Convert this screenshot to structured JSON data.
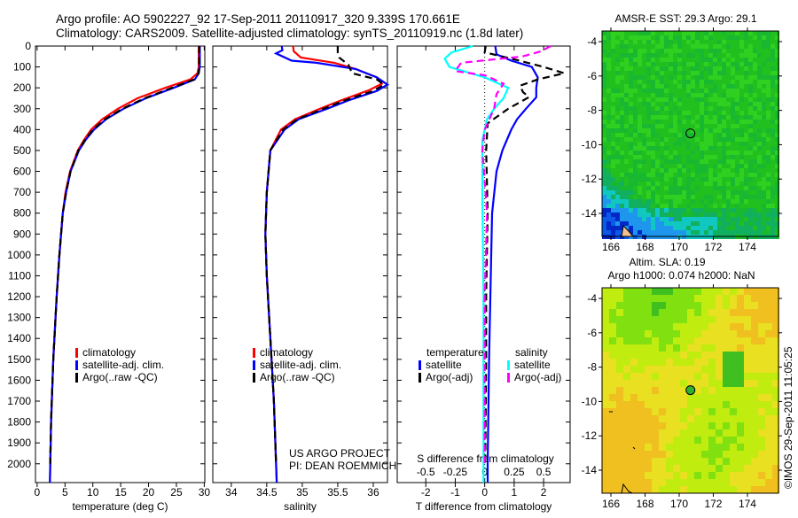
{
  "title_line1": "Argo profile: AO 5902227_92 17-Sep-2011 20110917_320 9.339S 170.661E",
  "title_line2": "Climatology: CARS2009. Satellite-adjusted climatology: synTS_20110919.nc (1.8d later)",
  "credit": "©IMOS 29-Sep-2011 11:05:25",
  "project_line1": "US ARGO PROJECT",
  "project_line2": "PI: DEAN ROEMMICH",
  "colors": {
    "climatology": "#ff0000",
    "satellite": "#0000ff",
    "argo": "#000000",
    "sal_satellite": "#00ffff",
    "sal_argo": "#ff00ff"
  },
  "chart_data": [
    {
      "type": "line",
      "xlabel": "temperature (deg C)",
      "ylabel": "",
      "xlim": [
        -0.3,
        30.1
      ],
      "ylim": [
        2090,
        0
      ],
      "xticks": [
        0,
        5,
        10,
        15,
        20,
        25,
        30
      ],
      "yticks": [
        0,
        100,
        200,
        300,
        400,
        500,
        600,
        700,
        800,
        900,
        1000,
        1100,
        1200,
        1300,
        1400,
        1500,
        1600,
        1700,
        1800,
        1900,
        2000
      ],
      "legend": [
        "climatology",
        "satellite-adj. clim.",
        "Argo(..raw -QC)"
      ],
      "series": [
        {
          "name": "climatology",
          "color": "#ff0000",
          "dash": false,
          "points": [
            [
              0,
              29
            ],
            [
              100,
              29
            ],
            [
              130,
              28.8
            ],
            [
              160,
              27.5
            ],
            [
              200,
              23
            ],
            [
              250,
              18
            ],
            [
              300,
              14.5
            ],
            [
              350,
              11.7
            ],
            [
              400,
              9.7
            ],
            [
              450,
              8.4
            ],
            [
              500,
              7.3
            ],
            [
              600,
              5.9
            ],
            [
              700,
              5.1
            ],
            [
              800,
              4.6
            ],
            [
              1000,
              4.0
            ],
            [
              1200,
              3.5
            ],
            [
              1500,
              2.9
            ],
            [
              1800,
              2.5
            ],
            [
              2090,
              2.3
            ]
          ]
        },
        {
          "name": "satellite-adj. clim.",
          "color": "#0000ff",
          "dash": false,
          "points": [
            [
              0,
              29.2
            ],
            [
              100,
              29.2
            ],
            [
              130,
              29.0
            ],
            [
              160,
              28.3
            ],
            [
              200,
              24.5
            ],
            [
              250,
              19.5
            ],
            [
              300,
              15.5
            ],
            [
              350,
              12.4
            ],
            [
              400,
              10.2
            ],
            [
              450,
              8.7
            ],
            [
              500,
              7.5
            ],
            [
              600,
              6.0
            ],
            [
              700,
              5.2
            ],
            [
              800,
              4.6
            ],
            [
              1000,
              4.0
            ],
            [
              1200,
              3.5
            ],
            [
              1500,
              2.9
            ],
            [
              1800,
              2.5
            ],
            [
              2090,
              2.3
            ]
          ]
        },
        {
          "name": "Argo(..raw -QC)",
          "color": "#000000",
          "dash": true,
          "points": [
            [
              0,
              29.1
            ],
            [
              100,
              29.1
            ],
            [
              130,
              29.0
            ],
            [
              160,
              28.2
            ],
            [
              200,
              24.2
            ],
            [
              250,
              19.3
            ],
            [
              300,
              15.3
            ],
            [
              350,
              12.2
            ],
            [
              400,
              10.0
            ],
            [
              450,
              8.6
            ],
            [
              500,
              7.4
            ],
            [
              600,
              6.0
            ],
            [
              700,
              5.2
            ],
            [
              800,
              4.6
            ],
            [
              1000,
              4.0
            ],
            [
              1200,
              3.5
            ],
            [
              1500,
              2.9
            ],
            [
              1800,
              2.5
            ],
            [
              2000,
              2.35
            ]
          ]
        }
      ]
    },
    {
      "type": "line",
      "xlabel": "salinity",
      "ylabel": "",
      "xlim": [
        33.74,
        36.2
      ],
      "ylim": [
        2090,
        0
      ],
      "xticks": [
        34,
        34.5,
        35,
        35.5,
        36
      ],
      "legend": [
        "climatology",
        "satellite-adj. clim.",
        "Argo(..raw -QC)"
      ],
      "series": [
        {
          "name": "climatology",
          "color": "#ff0000",
          "dash": false,
          "points": [
            [
              0,
              34.87
            ],
            [
              25,
              34.88
            ],
            [
              55,
              34.98
            ],
            [
              80,
              35.45
            ],
            [
              110,
              35.75
            ],
            [
              150,
              36.05
            ],
            [
              180,
              36.12
            ],
            [
              210,
              35.95
            ],
            [
              260,
              35.55
            ],
            [
              300,
              35.25
            ],
            [
              350,
              34.9
            ],
            [
              400,
              34.7
            ],
            [
              500,
              34.55
            ],
            [
              700,
              34.5
            ],
            [
              900,
              34.48
            ],
            [
              1100,
              34.5
            ],
            [
              1400,
              34.55
            ],
            [
              1700,
              34.6
            ],
            [
              2090,
              34.64
            ]
          ]
        },
        {
          "name": "satellite-adj. clim.",
          "color": "#0000ff",
          "dash": false,
          "points": [
            [
              0,
              34.71
            ],
            [
              20,
              34.72
            ],
            [
              35,
              34.63
            ],
            [
              70,
              34.85
            ],
            [
              80,
              35.2
            ],
            [
              110,
              35.75
            ],
            [
              150,
              36.05
            ],
            [
              185,
              36.2
            ],
            [
              215,
              36.05
            ],
            [
              260,
              35.65
            ],
            [
              300,
              35.35
            ],
            [
              350,
              34.95
            ],
            [
              400,
              34.75
            ],
            [
              500,
              34.55
            ],
            [
              700,
              34.5
            ],
            [
              900,
              34.48
            ],
            [
              1100,
              34.5
            ],
            [
              1400,
              34.55
            ],
            [
              1700,
              34.6
            ],
            [
              2090,
              34.64
            ]
          ]
        },
        {
          "name": "Argo(..raw -QC)",
          "color": "#000000",
          "dash": true,
          "points": [
            [
              0,
              35.5
            ],
            [
              30,
              35.5
            ],
            [
              55,
              35.52
            ],
            [
              90,
              35.65
            ],
            [
              130,
              35.7
            ],
            [
              160,
              36.05
            ],
            [
              185,
              36.15
            ],
            [
              215,
              36.0
            ],
            [
              260,
              35.6
            ],
            [
              300,
              35.3
            ],
            [
              350,
              34.93
            ],
            [
              400,
              34.73
            ],
            [
              500,
              34.55
            ],
            [
              700,
              34.5
            ],
            [
              900,
              34.48
            ],
            [
              1100,
              34.5
            ],
            [
              1400,
              34.55
            ],
            [
              1700,
              34.6
            ],
            [
              2000,
              34.63
            ]
          ]
        }
      ]
    },
    {
      "type": "line",
      "xlabel": "T difference from climatology",
      "x2label": "S difference from climatology",
      "xlim": [
        -2.97,
        2.9
      ],
      "ylim": [
        2090,
        0
      ],
      "xticks": [
        -2,
        -1,
        0,
        1,
        2
      ],
      "x2ticks": [
        -0.5,
        -0.25,
        0,
        0.25,
        0.5
      ],
      "legend_temperature_title": "temperature",
      "legend_salinity_title": "salinity",
      "legend": [
        "satellite",
        "Argo(-adj)",
        "satellite",
        "Argo(-adj)"
      ],
      "series": [
        {
          "name": "T satellite",
          "color": "#0000ff",
          "dash": false,
          "scale": 1,
          "points": [
            [
              0,
              0.36
            ],
            [
              40,
              0.4
            ],
            [
              70,
              0.9
            ],
            [
              100,
              1.6
            ],
            [
              150,
              1.8
            ],
            [
              200,
              1.75
            ],
            [
              245,
              1.75
            ],
            [
              300,
              1.4
            ],
            [
              350,
              1.1
            ],
            [
              400,
              0.9
            ],
            [
              500,
              0.6
            ],
            [
              600,
              0.4
            ],
            [
              800,
              0.25
            ],
            [
              1000,
              0.22
            ],
            [
              1500,
              0.15
            ],
            [
              2000,
              0.1
            ],
            [
              2090,
              0.1
            ]
          ]
        },
        {
          "name": "T Argo(-adj)",
          "color": "#000000",
          "dash": true,
          "scale": 1,
          "points": [
            [
              0,
              0.03
            ],
            [
              30,
              0.0
            ],
            [
              60,
              0.9
            ],
            [
              100,
              2.0
            ],
            [
              130,
              2.7
            ],
            [
              160,
              1.8
            ],
            [
              190,
              1.2
            ],
            [
              220,
              1.3
            ],
            [
              245,
              1.5
            ],
            [
              300,
              0.8
            ],
            [
              370,
              0.1
            ],
            [
              500,
              0.05
            ],
            [
              800,
              0.1
            ],
            [
              1200,
              0.05
            ],
            [
              1500,
              0.05
            ],
            [
              2000,
              0.02
            ]
          ]
        },
        {
          "name": "S satellite",
          "color": "#00ffff",
          "dash": false,
          "scale": 4,
          "points": [
            [
              0,
              -0.1
            ],
            [
              30,
              -0.28
            ],
            [
              60,
              -0.34
            ],
            [
              100,
              -0.3
            ],
            [
              150,
              0.0
            ],
            [
              200,
              0.2
            ],
            [
              250,
              0.16
            ],
            [
              300,
              0.08
            ],
            [
              350,
              0.02
            ],
            [
              450,
              -0.02
            ],
            [
              700,
              -0.02
            ],
            [
              1200,
              -0.01
            ],
            [
              2090,
              -0.01
            ]
          ]
        },
        {
          "name": "S Argo(-adj)",
          "color": "#ff00ff",
          "dash": true,
          "scale": 4,
          "points": [
            [
              0,
              0.56
            ],
            [
              25,
              0.48
            ],
            [
              50,
              0.32
            ],
            [
              80,
              -0.2
            ],
            [
              120,
              -0.25
            ],
            [
              140,
              0.0
            ],
            [
              180,
              0.16
            ],
            [
              230,
              0.1
            ],
            [
              300,
              0.08
            ],
            [
              400,
              0.0
            ],
            [
              500,
              -0.02
            ],
            [
              800,
              0.02
            ],
            [
              1200,
              0.0
            ],
            [
              2000,
              0.0
            ]
          ]
        }
      ]
    }
  ],
  "maps": [
    {
      "title": "AMSR-E SST: 29.3 Argo: 29.1",
      "kind": "sst",
      "lon_range": [
        165.48,
        175.82
      ],
      "lat_range": [
        -15.34,
        -3.38
      ],
      "lon_ticks": [
        166,
        168,
        170,
        172,
        174
      ],
      "lat_ticks": [
        -4,
        -6,
        -8,
        -10,
        -12,
        -14
      ],
      "float_lon": 170.661,
      "float_lat": -9.339
    },
    {
      "title": "Altim. SLA: 0.19",
      "subtitle": "Argo h1000: 0.074 h2000: NaN",
      "kind": "sla",
      "lon_range": [
        165.48,
        175.82
      ],
      "lat_range": [
        -15.34,
        -3.38
      ],
      "lon_ticks": [
        166,
        168,
        170,
        172,
        174
      ],
      "lat_ticks": [
        -4,
        -6,
        -8,
        -10,
        -12,
        -14
      ],
      "float_lon": 170.661,
      "float_lat": -9.339
    }
  ]
}
